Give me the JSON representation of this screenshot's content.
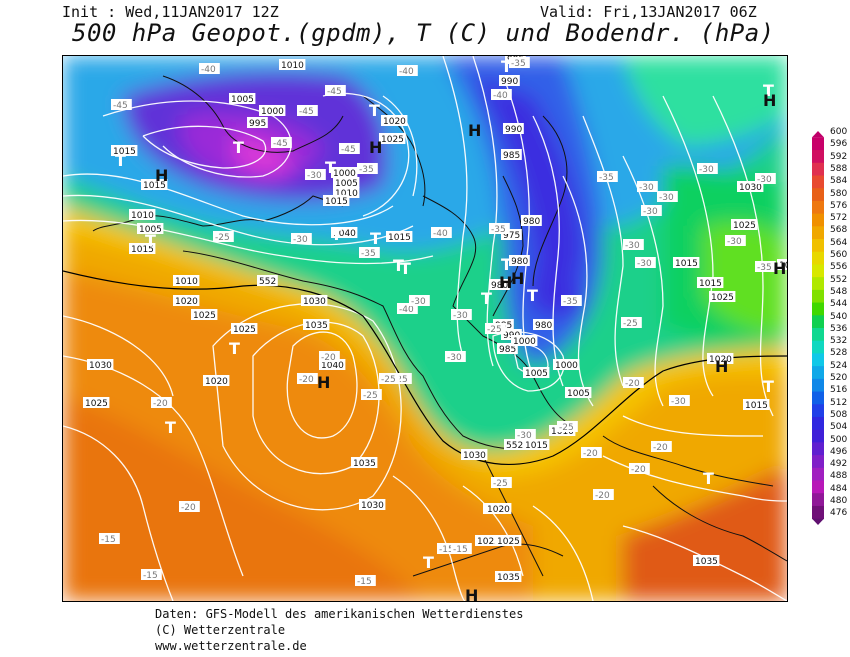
{
  "header": {
    "init": "Init : Wed,11JAN2017 12Z",
    "valid": "Valid: Fri,13JAN2017 06Z",
    "title": "500 hPa Geopot.(gpdm), T (C) und Bodendr. (hPa)"
  },
  "legend": {
    "ticks": [
      "600",
      "596",
      "592",
      "588",
      "584",
      "580",
      "576",
      "572",
      "568",
      "564",
      "560",
      "556",
      "552",
      "548",
      "544",
      "540",
      "536",
      "532",
      "528",
      "524",
      "520",
      "516",
      "512",
      "508",
      "504",
      "500",
      "496",
      "492",
      "488",
      "484",
      "480",
      "476"
    ]
  },
  "map": {
    "pressure_labels": [
      {
        "t": "1010"
      },
      {
        "t": "1005"
      },
      {
        "t": "1000"
      },
      {
        "t": "995"
      },
      {
        "t": "1015"
      },
      {
        "t": "1015"
      },
      {
        "t": "1020"
      },
      {
        "t": "1025"
      },
      {
        "t": "1000"
      },
      {
        "t": "1005"
      },
      {
        "t": "1010"
      },
      {
        "t": "1015"
      },
      {
        "t": "1040"
      },
      {
        "t": "1015"
      },
      {
        "t": "1010"
      },
      {
        "t": "1005"
      },
      {
        "t": "1015"
      },
      {
        "t": "1010"
      },
      {
        "t": "1020"
      },
      {
        "t": "1025"
      },
      {
        "t": "1025"
      },
      {
        "t": "1030"
      },
      {
        "t": "1035"
      },
      {
        "t": "1040"
      },
      {
        "t": "1030"
      },
      {
        "t": "1020"
      },
      {
        "t": "1025"
      },
      {
        "t": "1035"
      },
      {
        "t": "1030"
      },
      {
        "t": "995"
      },
      {
        "t": "990"
      },
      {
        "t": "990"
      },
      {
        "t": "985"
      },
      {
        "t": "980"
      },
      {
        "t": "975"
      },
      {
        "t": "980"
      },
      {
        "t": "980"
      },
      {
        "t": "985"
      },
      {
        "t": "990"
      },
      {
        "t": "985"
      },
      {
        "t": "980"
      },
      {
        "t": "1000"
      },
      {
        "t": "1005"
      },
      {
        "t": "1000"
      },
      {
        "t": "1005"
      },
      {
        "t": "1010"
      },
      {
        "t": "1015"
      },
      {
        "t": "1020"
      },
      {
        "t": "1025"
      },
      {
        "t": "1035"
      },
      {
        "t": "1030"
      },
      {
        "t": "1025"
      },
      {
        "t": "1030"
      },
      {
        "t": "1025"
      },
      {
        "t": "1015"
      },
      {
        "t": "1020"
      },
      {
        "t": "1015"
      },
      {
        "t": "1035"
      },
      {
        "t": "1020"
      },
      {
        "t": "1025"
      },
      {
        "t": "1015"
      },
      {
        "t": "1030"
      }
    ],
    "temp_labels": [
      {
        "t": "-40"
      },
      {
        "t": "-45"
      },
      {
        "t": "-45"
      },
      {
        "t": "-45"
      },
      {
        "t": "-40"
      },
      {
        "t": "-45"
      },
      {
        "t": "-35"
      },
      {
        "t": "-40"
      },
      {
        "t": "-45"
      },
      {
        "t": "-35"
      },
      {
        "t": "-30"
      },
      {
        "t": "-25"
      },
      {
        "t": "-30"
      },
      {
        "t": "-35"
      },
      {
        "t": "-40"
      },
      {
        "t": "-40"
      },
      {
        "t": "-30"
      },
      {
        "t": "-35"
      },
      {
        "t": "-35"
      },
      {
        "t": "-30"
      },
      {
        "t": "-30"
      },
      {
        "t": "-30"
      },
      {
        "t": "-30"
      },
      {
        "t": "-30"
      },
      {
        "t": "-30"
      },
      {
        "t": "-35"
      },
      {
        "t": "-30"
      },
      {
        "t": "-25"
      },
      {
        "t": "-30"
      },
      {
        "t": "-25"
      },
      {
        "t": "-25"
      },
      {
        "t": "-30"
      },
      {
        "t": "-25"
      },
      {
        "t": "-30"
      },
      {
        "t": "-20"
      },
      {
        "t": "-20"
      },
      {
        "t": "-20"
      },
      {
        "t": "-20"
      },
      {
        "t": "-20"
      },
      {
        "t": "-20"
      },
      {
        "t": "-25"
      },
      {
        "t": "-25"
      },
      {
        "t": "-20"
      },
      {
        "t": "-20"
      },
      {
        "t": "-15"
      },
      {
        "t": "-15"
      },
      {
        "t": "-15"
      },
      {
        "t": "-15"
      },
      {
        "t": "-15"
      },
      {
        "t": "-20"
      },
      {
        "t": "-25"
      },
      {
        "t": "-30"
      },
      {
        "t": "-30"
      },
      {
        "t": "-35"
      }
    ],
    "contour_labels": [
      {
        "t": "552"
      },
      {
        "t": "552"
      }
    ],
    "centers": [
      {
        "t": "T"
      },
      {
        "t": "H"
      },
      {
        "t": "T"
      },
      {
        "t": "T"
      },
      {
        "t": "T"
      },
      {
        "t": "T"
      },
      {
        "t": "H"
      },
      {
        "t": "T"
      },
      {
        "t": "T"
      },
      {
        "t": "H"
      },
      {
        "t": "T"
      },
      {
        "t": "T"
      },
      {
        "t": "T"
      },
      {
        "t": "H"
      },
      {
        "t": "T"
      },
      {
        "t": "H"
      },
      {
        "t": "T"
      },
      {
        "t": "T"
      },
      {
        "t": "H"
      },
      {
        "t": "T"
      },
      {
        "t": "T"
      },
      {
        "t": "H"
      },
      {
        "t": "T"
      },
      {
        "t": "T"
      },
      {
        "t": "H"
      },
      {
        "t": "T"
      },
      {
        "t": "H"
      },
      {
        "t": "T"
      },
      {
        "t": "H"
      }
    ]
  },
  "footer": {
    "line1": "Daten: GFS-Modell des amerikanischen Wetterdienstes",
    "line2": "(C) Wetterzentrale",
    "line3": "www.wetterzentrale.de"
  }
}
